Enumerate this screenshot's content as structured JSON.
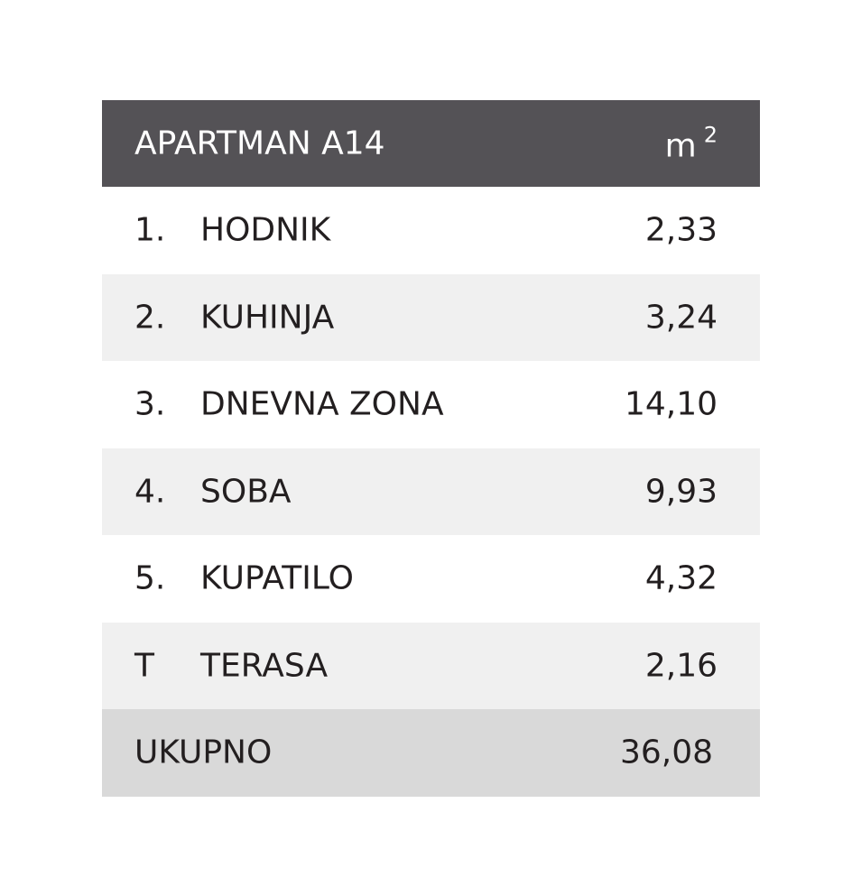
{
  "header": {
    "title": "APARTMAN A14",
    "unit": "m",
    "unit_sup": "2"
  },
  "table": {
    "rows": [
      [
        "1.",
        "HODNIK",
        "2,33"
      ],
      [
        "2.",
        "KUHINJA",
        "3,24"
      ],
      [
        "3.",
        "DNEVNA ZONA",
        "14,10"
      ],
      [
        "4.",
        "SOBA",
        "9,93"
      ],
      [
        "5.",
        "KUPATILO",
        "4,32"
      ],
      [
        "T",
        "TERASA",
        "2,16"
      ]
    ]
  },
  "total": {
    "label": "UKUPNO",
    "value": "36,08"
  }
}
